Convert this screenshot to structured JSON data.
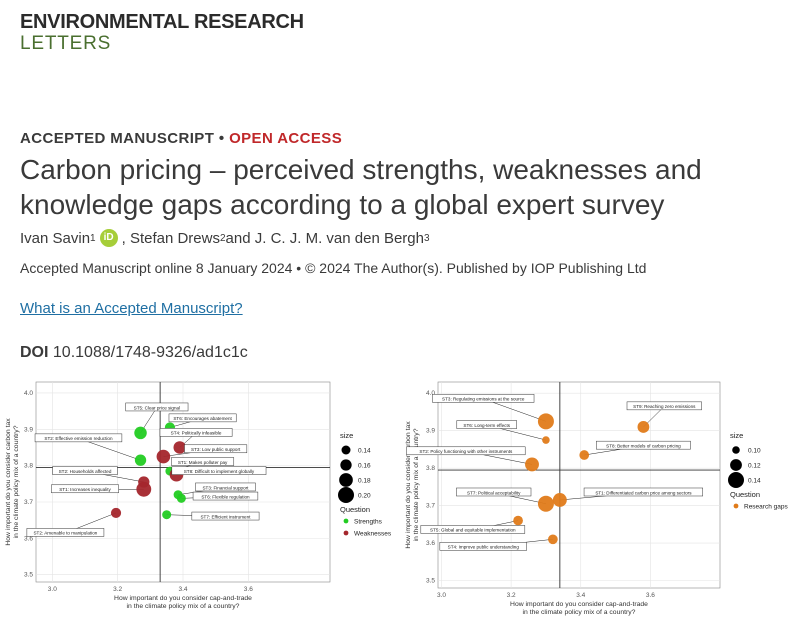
{
  "journal": {
    "line1": "ENVIRONMENTAL RESEARCH",
    "line2": "LETTERS"
  },
  "kicker": {
    "accepted": "ACCEPTED MANUSCRIPT",
    "sep": " • ",
    "open_access": "OPEN ACCESS"
  },
  "title": "Carbon pricing – perceived strengths, weaknesses and knowledge gaps according to a global expert survey",
  "authors": [
    {
      "name": "Ivan Savin",
      "sup": "1"
    },
    {
      "name": ", Stefan Drews",
      "sup": "2"
    },
    {
      "name": " and J. C. J. M. van den Bergh",
      "sup": "3"
    }
  ],
  "orcid_label": "iD",
  "accepted_line": "Accepted Manuscript online 8 January 2024 • © 2024 The Author(s). Published by IOP Publishing Ltd",
  "link_text": "What is an Accepted Manuscript?",
  "doi": {
    "label": "DOI",
    "value": "10.1088/1748-9326/ad1c1c"
  },
  "colors": {
    "strengths": "#22cc22",
    "weaknesses": "#a4262c",
    "gaps": "#e07b1a",
    "oa": "#c0282a",
    "link": "#1f6fa3",
    "journal_green": "#4a6f2f",
    "orcid": "#a6ce39"
  },
  "chart_data": [
    {
      "type": "scatter",
      "xlabel": "How important do you consider cap-and-trade\nin the climate policy mix of a country?",
      "ylabel": "How important do you consider carbon tax\nin the climate policy mix of a country?",
      "xlim": [
        2.95,
        3.85
      ],
      "ylim": [
        3.48,
        4.03
      ],
      "xticks": [
        "3.0",
        "3.2",
        "3.4",
        "3.6"
      ],
      "yticks": [
        "3.5",
        "3.6",
        "3.7",
        "3.8",
        "3.9",
        "4.0"
      ],
      "ref_x": 3.33,
      "ref_y": 3.795,
      "legend": {
        "size_title": "size",
        "sizes": [
          "0.14",
          "0.16",
          "0.18",
          "0.20"
        ],
        "question_title": "Question",
        "question_entries": [
          {
            "label": "Strengths",
            "color": "#22cc22"
          },
          {
            "label": "Weaknesses",
            "color": "#a4262c"
          }
        ]
      },
      "points": [
        {
          "label": "ST5: Clear price signal",
          "x": 3.27,
          "y": 3.89,
          "size": 0.17,
          "group": "Strengths",
          "lx": 3.32,
          "ly": 3.96
        },
        {
          "label": "ST6: Encourages abatement",
          "x": 3.36,
          "y": 3.905,
          "size": 0.15,
          "group": "Strengths",
          "lx": 3.46,
          "ly": 3.93
        },
        {
          "label": "ST4: Politically infeasible",
          "x": 3.39,
          "y": 3.85,
          "size": 0.17,
          "group": "Weaknesses",
          "lx": 3.44,
          "ly": 3.89
        },
        {
          "label": "ST2: Effective emission reduction",
          "x": 3.27,
          "y": 3.815,
          "size": 0.16,
          "group": "Strengths",
          "lx": 3.08,
          "ly": 3.875
        },
        {
          "label": "ST3: Low public support",
          "x": 3.34,
          "y": 3.825,
          "size": 0.18,
          "group": "Weaknesses",
          "lx": 3.5,
          "ly": 3.845
        },
        {
          "label": "ST1: Makes polluter pay",
          "x": 3.36,
          "y": 3.785,
          "size": 0.14,
          "group": "Strengths",
          "lx": 3.46,
          "ly": 3.81
        },
        {
          "label": "ST8: Difficult to implement globally",
          "x": 3.38,
          "y": 3.775,
          "size": 0.18,
          "group": "Weaknesses",
          "lx": 3.51,
          "ly": 3.785
        },
        {
          "label": "ST2: Households affected",
          "x": 3.28,
          "y": 3.755,
          "size": 0.16,
          "group": "Weaknesses",
          "lx": 3.1,
          "ly": 3.785
        },
        {
          "label": "ST1: Increases inequality",
          "x": 3.28,
          "y": 3.735,
          "size": 0.19,
          "group": "Weaknesses",
          "lx": 3.1,
          "ly": 3.735
        },
        {
          "label": "ST3: Financial support",
          "x": 3.385,
          "y": 3.72,
          "size": 0.14,
          "group": "Strengths",
          "lx": 3.53,
          "ly": 3.74
        },
        {
          "label": "ST6: Flexible regulation",
          "x": 3.395,
          "y": 3.71,
          "size": 0.14,
          "group": "Strengths",
          "lx": 3.53,
          "ly": 3.715
        },
        {
          "label": "ST7: Efficient instrument",
          "x": 3.35,
          "y": 3.665,
          "size": 0.14,
          "group": "Strengths",
          "lx": 3.53,
          "ly": 3.66
        },
        {
          "label": "ST2: Amenable to manipulation",
          "x": 3.195,
          "y": 3.67,
          "size": 0.15,
          "group": "Weaknesses",
          "lx": 3.04,
          "ly": 3.615
        }
      ]
    },
    {
      "type": "scatter",
      "xlabel": "How important do you consider cap-and-trade\nin the climate policy mix of a country?",
      "ylabel": "How important do you consider carbon tax\nin the climate policy mix of a country?",
      "xlim": [
        2.99,
        3.8
      ],
      "ylim": [
        3.48,
        4.03
      ],
      "xticks": [
        "3.0",
        "3.2",
        "3.4",
        "3.6"
      ],
      "yticks": [
        "3.5",
        "3.6",
        "3.7",
        "3.8",
        "3.9",
        "4.0"
      ],
      "ref_x": 3.34,
      "ref_y": 3.795,
      "legend": {
        "size_title": "size",
        "sizes": [
          "0.10",
          "0.12",
          "0.14"
        ],
        "question_title": "Question",
        "question_entries": [
          {
            "label": "Research gaps",
            "color": "#e07b1a"
          }
        ]
      },
      "points": [
        {
          "label": "ST3: Regulating emissions at the source",
          "x": 3.3,
          "y": 3.925,
          "size": 0.14,
          "group": "Research gaps",
          "lx": 3.12,
          "ly": 3.985
        },
        {
          "label": "ST9: Reaching zero emissions",
          "x": 3.58,
          "y": 3.91,
          "size": 0.12,
          "group": "Research gaps",
          "lx": 3.64,
          "ly": 3.965
        },
        {
          "label": "ST6: Long-term effects",
          "x": 3.3,
          "y": 3.875,
          "size": 0.1,
          "group": "Research gaps",
          "lx": 3.13,
          "ly": 3.915
        },
        {
          "label": "ST2: Policy functioning with other instruments",
          "x": 3.26,
          "y": 3.81,
          "size": 0.13,
          "group": "Research gaps",
          "lx": 3.07,
          "ly": 3.845
        },
        {
          "label": "ST8: Better models of carbon pricing",
          "x": 3.41,
          "y": 3.835,
          "size": 0.11,
          "group": "Research gaps",
          "lx": 3.58,
          "ly": 3.86
        },
        {
          "label": "ST7: Political acceptability",
          "x": 3.3,
          "y": 3.705,
          "size": 0.14,
          "group": "Research gaps",
          "lx": 3.15,
          "ly": 3.735
        },
        {
          "label": "ST1: Differentiated carbon price among sectors",
          "x": 3.34,
          "y": 3.715,
          "size": 0.13,
          "group": "Research gaps",
          "lx": 3.58,
          "ly": 3.735
        },
        {
          "label": "ST5: Global and equitable implementation",
          "x": 3.22,
          "y": 3.66,
          "size": 0.11,
          "group": "Research gaps",
          "lx": 3.09,
          "ly": 3.635
        },
        {
          "label": "ST4: Improve public understanding",
          "x": 3.32,
          "y": 3.61,
          "size": 0.11,
          "group": "Research gaps",
          "lx": 3.12,
          "ly": 3.59
        }
      ]
    }
  ]
}
